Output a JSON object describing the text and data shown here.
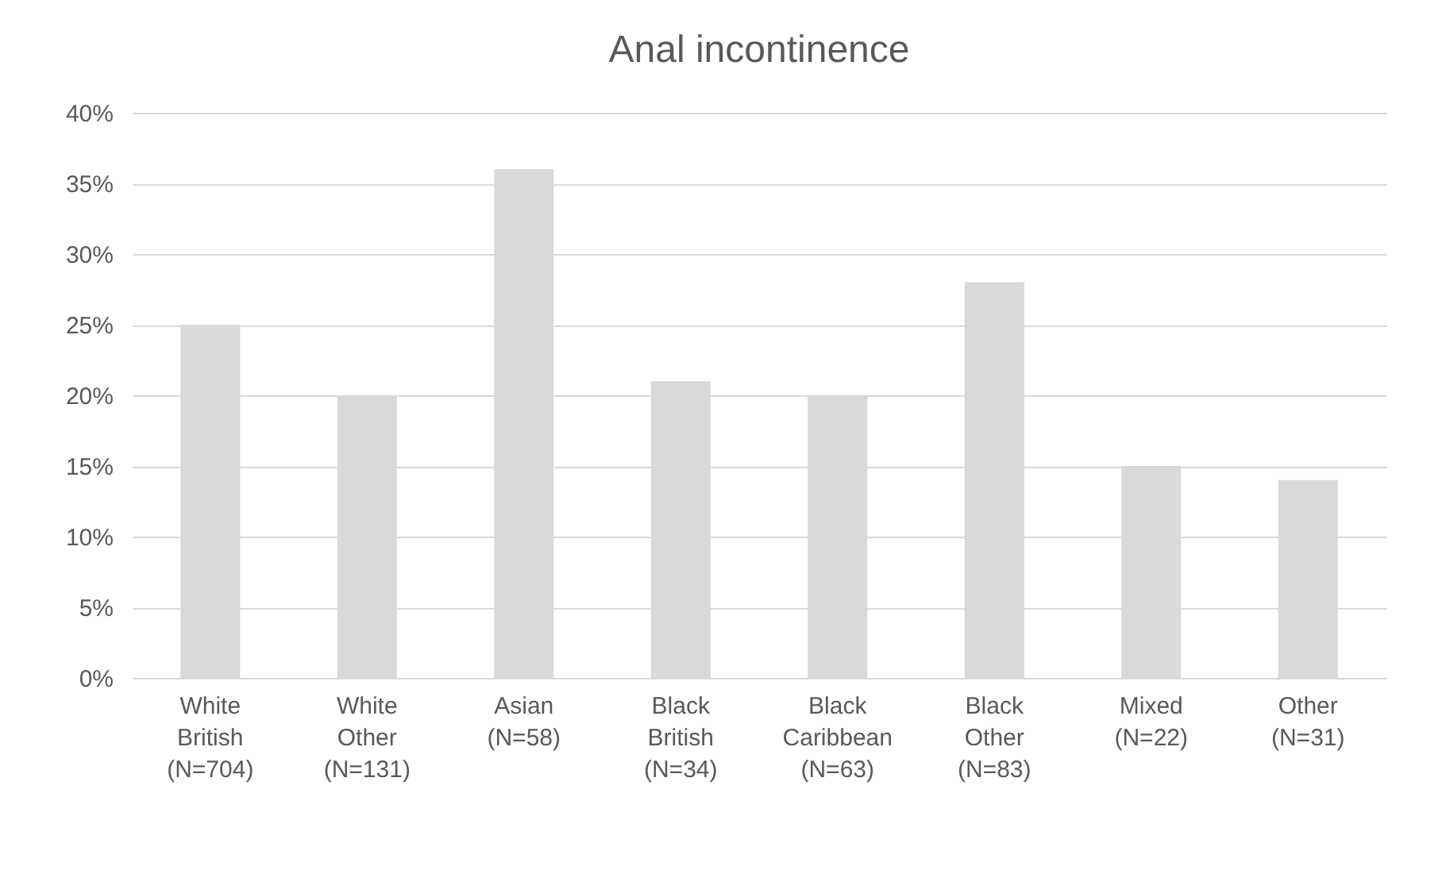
{
  "chart_data": {
    "type": "bar",
    "title": "Anal incontinence",
    "categories": [
      "White\nBritish\n(N=704)",
      "White\nOther\n(N=131)",
      "Asian\n(N=58)",
      "Black\nBritish\n(N=34)",
      "Black\nCaribbean\n(N=63)",
      "Black\nOther\n(N=83)",
      "Mixed\n(N=22)",
      "Other\n(N=31)"
    ],
    "values": [
      25,
      20,
      36,
      21,
      20,
      28,
      15,
      14
    ],
    "color": "#d9d9d9",
    "ylim": [
      0,
      40
    ],
    "yticks": [
      {
        "value": 0,
        "label": "0%"
      },
      {
        "value": 5,
        "label": "5%"
      },
      {
        "value": 10,
        "label": "10%"
      },
      {
        "value": 15,
        "label": "15%"
      },
      {
        "value": 20,
        "label": "20%"
      },
      {
        "value": 25,
        "label": "25%"
      },
      {
        "value": 30,
        "label": "30%"
      },
      {
        "value": 35,
        "label": "35%"
      },
      {
        "value": 40,
        "label": "40%"
      }
    ],
    "grid": "y",
    "legend": false
  }
}
